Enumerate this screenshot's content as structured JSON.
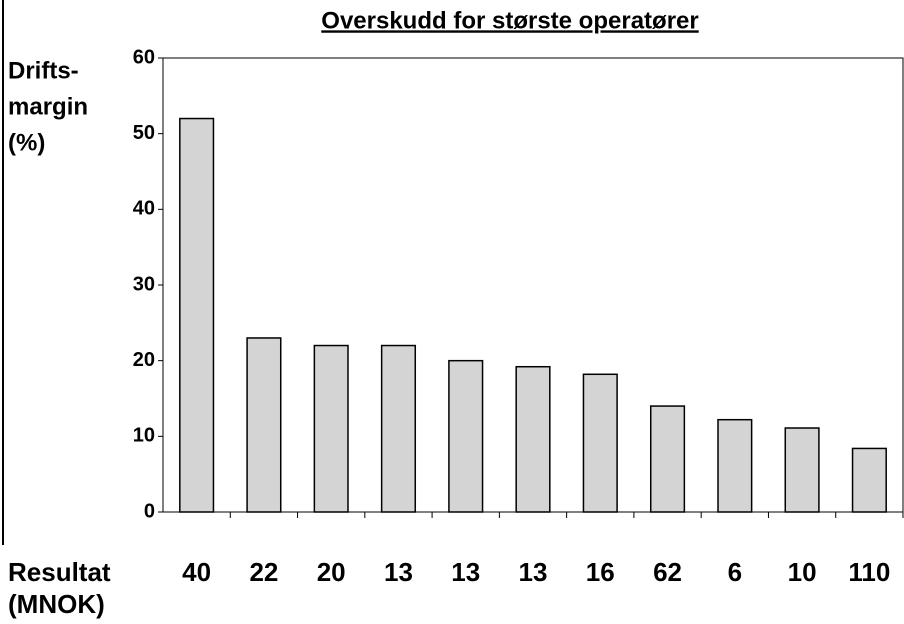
{
  "chart_data": {
    "type": "bar",
    "title": "Overskudd for største operatører",
    "y_label": [
      "Drifts-",
      "margin",
      "(%)"
    ],
    "x_label": [
      "Resultat",
      "(MNOK)"
    ],
    "categories": [
      "40",
      "22",
      "20",
      "13",
      "13",
      "13",
      "16",
      "62",
      "6",
      "10",
      "110"
    ],
    "values": [
      52,
      23,
      22,
      22,
      20,
      19.2,
      18.2,
      14,
      12.2,
      11.1,
      8.4
    ],
    "color": "#d4d4d4",
    "ylim": [
      0,
      60
    ],
    "yticks": [
      0,
      10,
      20,
      30,
      40,
      50,
      60
    ],
    "grid": false
  }
}
